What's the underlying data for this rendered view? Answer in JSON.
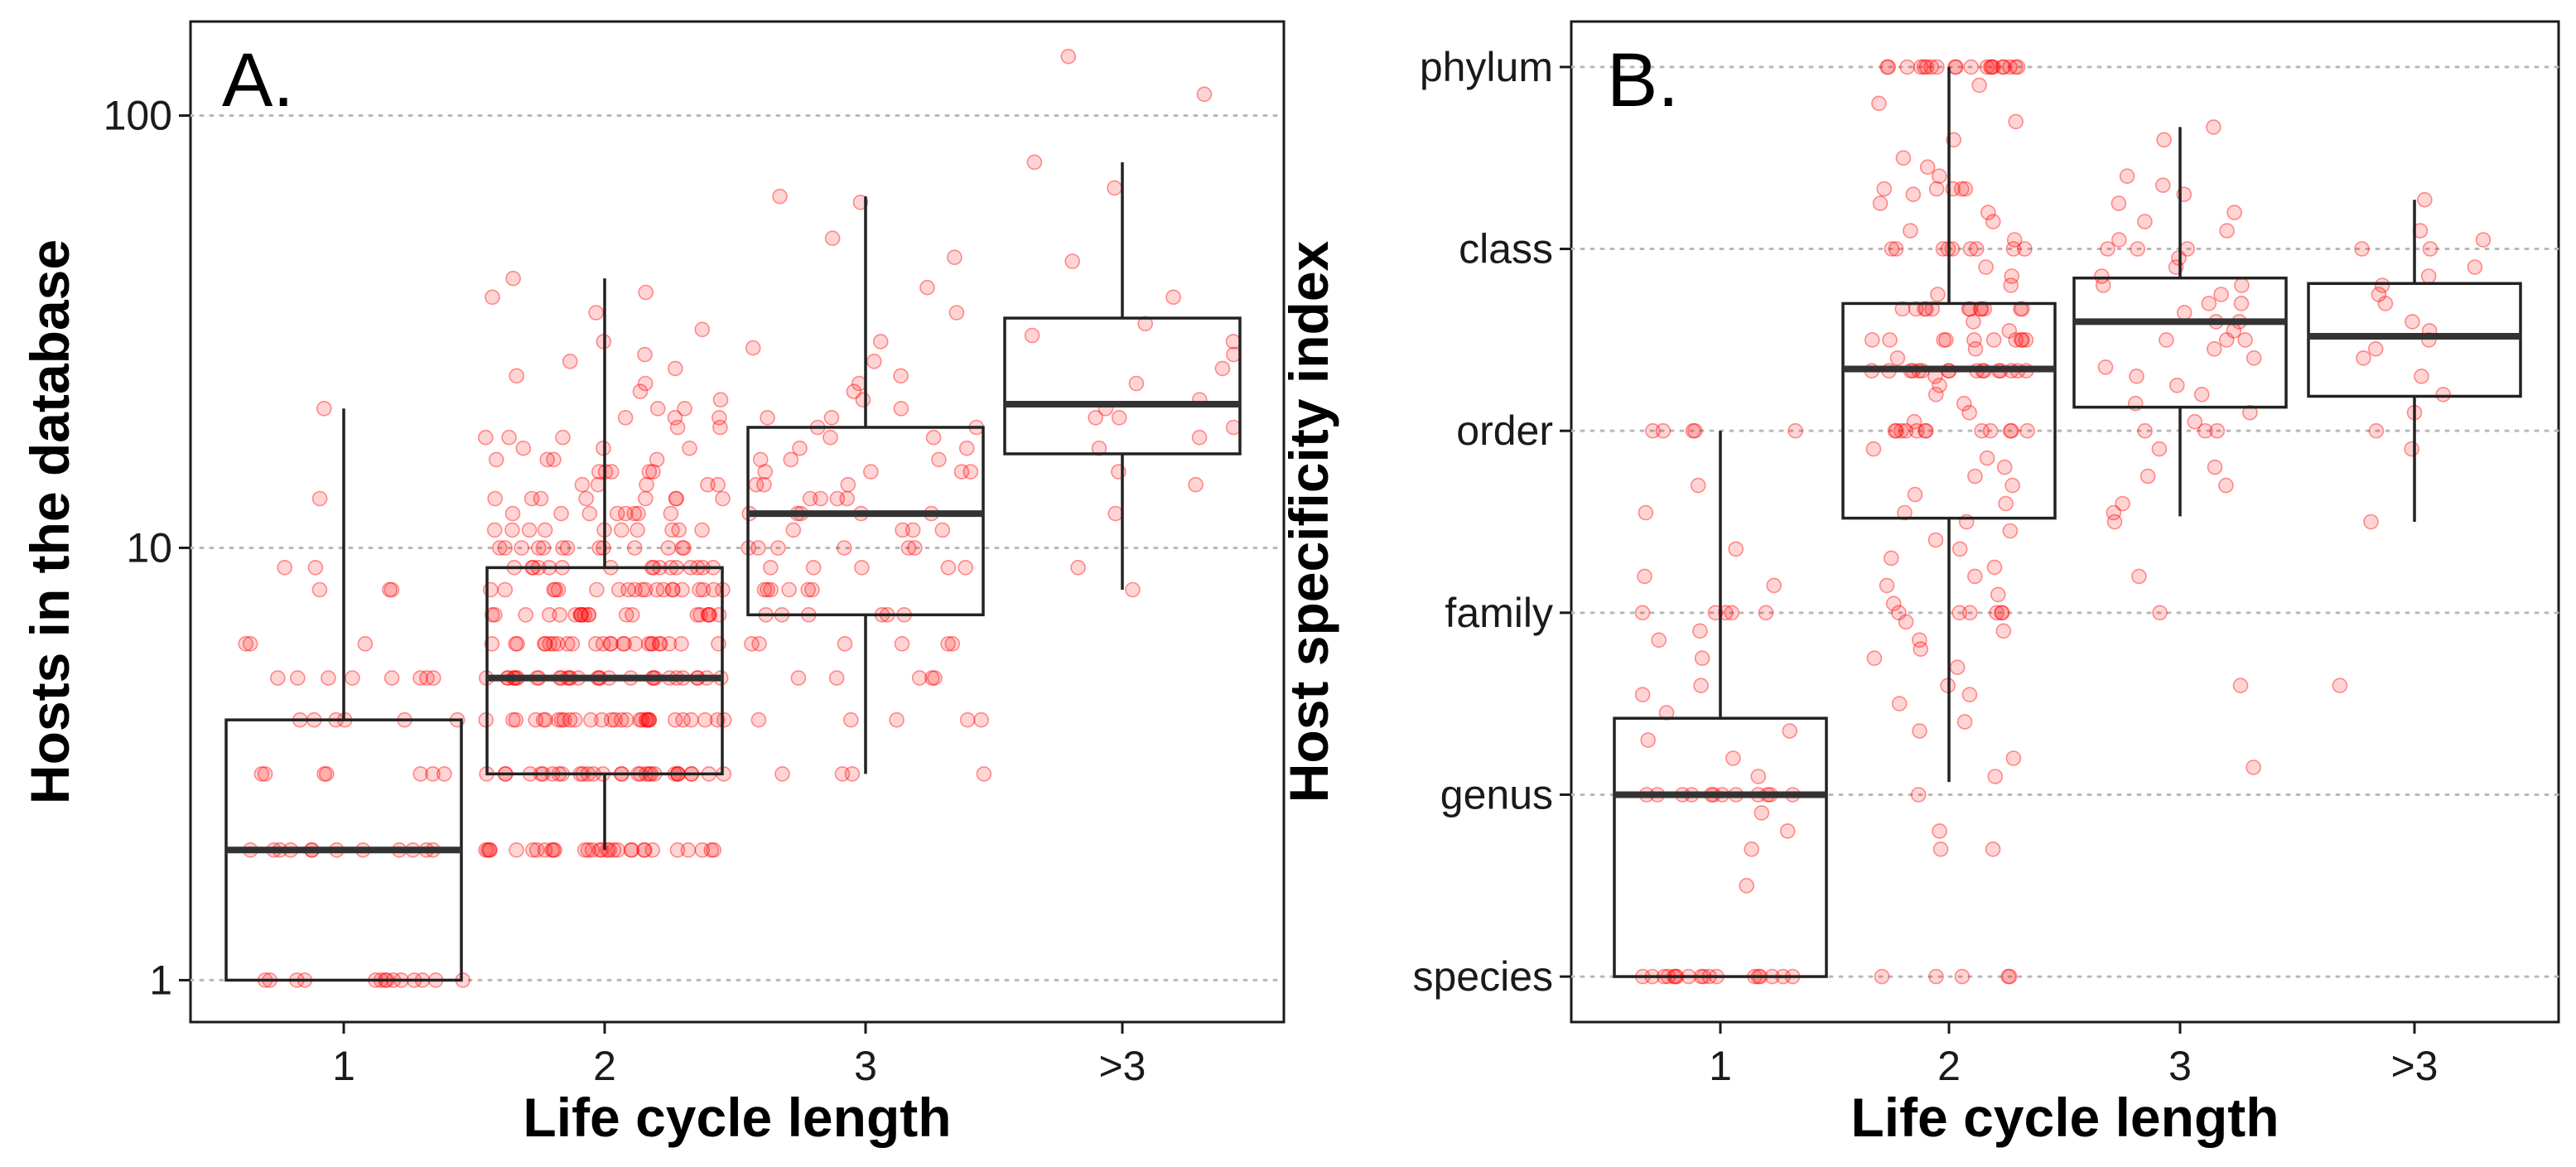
{
  "figure": {
    "panels": [
      {
        "label": "A.",
        "ylabel": "Hosts in the database",
        "xlabel": "Life cycle length"
      },
      {
        "label": "B.",
        "ylabel": "Host specificity index",
        "xlabel": "Life cycle length"
      }
    ]
  },
  "colors": {
    "points": "#ff0000",
    "box_line": "#222222",
    "median_line": "#333333",
    "grid": "#b8b8b8"
  },
  "chart_data": [
    {
      "type": "box",
      "panel": "A.",
      "title": "",
      "xlabel": "Life cycle length",
      "ylabel": "Hosts in the database",
      "categories": [
        "1",
        "2",
        "3",
        ">3"
      ],
      "y_scale": "log10",
      "ylim": [
        0.8,
        165
      ],
      "yticks": [
        1,
        10,
        100
      ],
      "ytick_labels": [
        "1",
        "10",
        "100"
      ],
      "grid": "horizontal dotted at y ticks",
      "boxes": [
        {
          "category": "1",
          "whisker_low": 1,
          "q1": 1,
          "median": 2,
          "q3": 4,
          "whisker_high": 21
        },
        {
          "category": "2",
          "whisker_low": 2,
          "q1": 3,
          "median": 5,
          "q3": 9,
          "whisker_high": 42
        },
        {
          "category": "3",
          "whisker_low": 3,
          "q1": 7,
          "median": 12,
          "q3": 19,
          "whisker_high": 65
        },
        {
          "category": ">3",
          "whisker_low": 8,
          "q1": 16.5,
          "median": 21.5,
          "q3": 34,
          "whisker_high": 78
        }
      ],
      "points": [
        {
          "category": "1",
          "values": [
            1,
            1,
            1,
            1,
            1,
            1,
            1,
            1,
            1,
            1,
            1,
            1,
            1,
            1,
            2,
            2,
            2,
            2,
            2,
            2,
            2,
            2,
            2,
            2,
            2,
            2,
            3,
            3,
            3,
            3,
            3,
            3,
            3,
            4,
            4,
            4,
            4,
            4,
            4,
            5,
            5,
            5,
            5,
            5,
            5,
            5,
            5,
            6,
            6,
            6,
            8,
            8,
            8,
            9,
            9,
            13,
            21
          ]
        },
        {
          "category": "2",
          "values": [
            2,
            2,
            2,
            2,
            2,
            2,
            2,
            2,
            2,
            2,
            2,
            2,
            2,
            2,
            2,
            2,
            2,
            2,
            2,
            2,
            2,
            2,
            2,
            2,
            2,
            2,
            2,
            2,
            2,
            2,
            3,
            3,
            3,
            3,
            3,
            3,
            3,
            3,
            3,
            3,
            3,
            3,
            3,
            3,
            3,
            3,
            3,
            3,
            3,
            3,
            3,
            3,
            3,
            3,
            3,
            3,
            3,
            3,
            3,
            3,
            4,
            4,
            4,
            4,
            4,
            4,
            4,
            4,
            4,
            4,
            4,
            4,
            4,
            4,
            4,
            4,
            4,
            4,
            4,
            4,
            4,
            4,
            4,
            4,
            4,
            4,
            4,
            4,
            4,
            4,
            5,
            5,
            5,
            5,
            5,
            5,
            5,
            5,
            5,
            5,
            5,
            5,
            5,
            5,
            5,
            5,
            5,
            5,
            5,
            5,
            5,
            5,
            5,
            5,
            5,
            5,
            5,
            5,
            5,
            5,
            6,
            6,
            6,
            6,
            6,
            6,
            6,
            6,
            6,
            6,
            6,
            6,
            6,
            6,
            6,
            6,
            6,
            6,
            6,
            6,
            6,
            6,
            6,
            6,
            6,
            7,
            7,
            7,
            7,
            7,
            7,
            7,
            7,
            7,
            7,
            7,
            7,
            7,
            7,
            7,
            7,
            7,
            7,
            7,
            7,
            8,
            8,
            8,
            8,
            8,
            8,
            8,
            8,
            8,
            8,
            8,
            8,
            8,
            8,
            8,
            8,
            8,
            8,
            8,
            8,
            9,
            9,
            9,
            9,
            9,
            9,
            9,
            9,
            9,
            9,
            9,
            9,
            9,
            9,
            9,
            9,
            10,
            10,
            10,
            10,
            10,
            10,
            10,
            10,
            10,
            10,
            10,
            10,
            10,
            11,
            11,
            11,
            11,
            11,
            11,
            11,
            11,
            11,
            11,
            12,
            12,
            12,
            12,
            12,
            12,
            12,
            12,
            13,
            13,
            13,
            13,
            13,
            13,
            13,
            13,
            14,
            14,
            14,
            14,
            14,
            15,
            15,
            15,
            15,
            15,
            16,
            16,
            16,
            16,
            17,
            17,
            17,
            18,
            18,
            18,
            19,
            19,
            20,
            20,
            20,
            21,
            21,
            22,
            23,
            24,
            25,
            26,
            27,
            28,
            30,
            32,
            35,
            38,
            39,
            42
          ]
        },
        {
          "category": "3",
          "values": [
            3,
            3,
            3,
            3,
            4,
            4,
            4,
            4,
            4,
            5,
            5,
            5,
            5,
            5,
            6,
            6,
            6,
            6,
            6,
            6,
            7,
            7,
            7,
            7,
            7,
            7,
            8,
            8,
            8,
            8,
            8,
            8,
            9,
            9,
            9,
            9,
            9,
            10,
            10,
            10,
            10,
            10,
            10,
            11,
            11,
            11,
            11,
            12,
            12,
            12,
            12,
            12,
            13,
            13,
            13,
            13,
            14,
            14,
            14,
            15,
            15,
            15,
            15,
            16,
            16,
            16,
            17,
            17,
            18,
            18,
            19,
            19,
            20,
            20,
            21,
            22,
            23,
            24,
            25,
            27,
            29,
            30,
            35,
            40,
            47,
            52,
            63,
            65
          ]
        },
        {
          "category": ">3",
          "values": [
            8,
            9,
            12,
            14,
            15,
            17,
            18,
            19,
            20,
            20,
            21,
            22,
            24,
            26,
            28,
            30,
            31,
            33,
            38,
            46,
            68,
            78,
            112,
            137
          ]
        }
      ]
    },
    {
      "type": "box",
      "panel": "B.",
      "title": "",
      "xlabel": "Life cycle length",
      "ylabel": "Host specificity index",
      "categories": [
        "1",
        "2",
        "3",
        ">3"
      ],
      "ylim": [
        0.75,
        6.25
      ],
      "yticks": [
        1,
        2,
        3,
        4,
        5,
        6
      ],
      "ytick_labels": [
        "species",
        "genus",
        "family",
        "order",
        "class",
        "phylum"
      ],
      "grid": "horizontal dotted at y ticks",
      "boxes": [
        {
          "category": "1",
          "whisker_low": 1,
          "q1": 1,
          "median": 2,
          "q3": 2.42,
          "whisker_high": 4
        },
        {
          "category": "2",
          "whisker_low": 2.07,
          "q1": 3.52,
          "median": 4.34,
          "q3": 4.7,
          "whisker_high": 6
        },
        {
          "category": "3",
          "whisker_low": 3.53,
          "q1": 4.13,
          "median": 4.6,
          "q3": 4.84,
          "whisker_high": 5.67
        },
        {
          "category": ">3",
          "whisker_low": 3.5,
          "q1": 4.19,
          "median": 4.52,
          "q3": 4.81,
          "whisker_high": 5.27
        }
      ],
      "points": [
        {
          "category": "1",
          "values": [
            1,
            1,
            1,
            1,
            1,
            1,
            1,
            1,
            1,
            1,
            1,
            1,
            1,
            1,
            1,
            1,
            1,
            1,
            1.5,
            1.7,
            1.8,
            1.9,
            2,
            2,
            2,
            2,
            2,
            2,
            2,
            2,
            2,
            2,
            2,
            2,
            2.1,
            2.2,
            2.3,
            2.35,
            2.45,
            2.55,
            2.6,
            2.75,
            2.85,
            2.9,
            3,
            3,
            3,
            3,
            3,
            3.15,
            3.2,
            3.35,
            3.55,
            3.7,
            4,
            4,
            4,
            4,
            4
          ]
        },
        {
          "category": "2",
          "values": [
            1,
            1,
            1,
            1,
            1,
            1.7,
            1.7,
            1.8,
            2,
            2.1,
            2.2,
            2.35,
            2.4,
            2.5,
            2.55,
            2.6,
            2.7,
            2.75,
            2.8,
            2.85,
            2.9,
            2.95,
            3,
            3,
            3,
            3,
            3,
            3,
            3.05,
            3.1,
            3.15,
            3.2,
            3.25,
            3.3,
            3.35,
            3.4,
            3.45,
            3.5,
            3.55,
            3.6,
            3.65,
            3.7,
            3.75,
            3.8,
            3.85,
            3.9,
            4,
            4,
            4,
            4,
            4,
            4,
            4,
            4,
            4,
            4,
            4,
            4,
            4.05,
            4.1,
            4.15,
            4.2,
            4.25,
            4.3,
            4.33,
            4.33,
            4.33,
            4.33,
            4.33,
            4.33,
            4.33,
            4.33,
            4.33,
            4.33,
            4.33,
            4.33,
            4.33,
            4.33,
            4.33,
            4.33,
            4.4,
            4.45,
            4.5,
            4.5,
            4.5,
            4.5,
            4.5,
            4.5,
            4.5,
            4.5,
            4.5,
            4.5,
            4.55,
            4.6,
            4.67,
            4.67,
            4.67,
            4.67,
            4.67,
            4.67,
            4.67,
            4.67,
            4.67,
            4.67,
            4.67,
            4.67,
            4.75,
            4.8,
            4.85,
            4.9,
            5,
            5,
            5,
            5,
            5,
            5,
            5,
            5,
            5,
            5.05,
            5.1,
            5.15,
            5.2,
            5.25,
            5.3,
            5.33,
            5.33,
            5.33,
            5.33,
            5.33,
            5.4,
            5.45,
            5.5,
            5.6,
            5.7,
            5.8,
            5.9,
            6,
            6,
            6,
            6,
            6,
            6,
            6,
            6,
            6,
            6,
            6,
            6,
            6,
            6,
            6,
            6,
            6,
            6,
            6,
            6
          ]
        },
        {
          "category": "3",
          "values": [
            2.15,
            2.6,
            3,
            3.2,
            3.5,
            3.55,
            3.6,
            3.7,
            3.75,
            3.8,
            3.9,
            4,
            4,
            4,
            4.05,
            4.1,
            4.15,
            4.2,
            4.25,
            4.3,
            4.35,
            4.4,
            4.45,
            4.5,
            4.5,
            4.5,
            4.55,
            4.6,
            4.6,
            4.65,
            4.7,
            4.7,
            4.75,
            4.8,
            4.8,
            4.85,
            4.9,
            4.95,
            5,
            5,
            5,
            5.05,
            5.1,
            5.15,
            5.2,
            5.25,
            5.3,
            5.35,
            5.4,
            5.6,
            5.67
          ]
        },
        {
          "category": ">3",
          "values": [
            2.6,
            3.5,
            3.9,
            4,
            4.1,
            4.2,
            4.3,
            4.4,
            4.45,
            4.5,
            4.55,
            4.6,
            4.7,
            4.75,
            4.8,
            4.85,
            4.9,
            5,
            5,
            5.05,
            5.1,
            5.27
          ]
        }
      ]
    }
  ]
}
